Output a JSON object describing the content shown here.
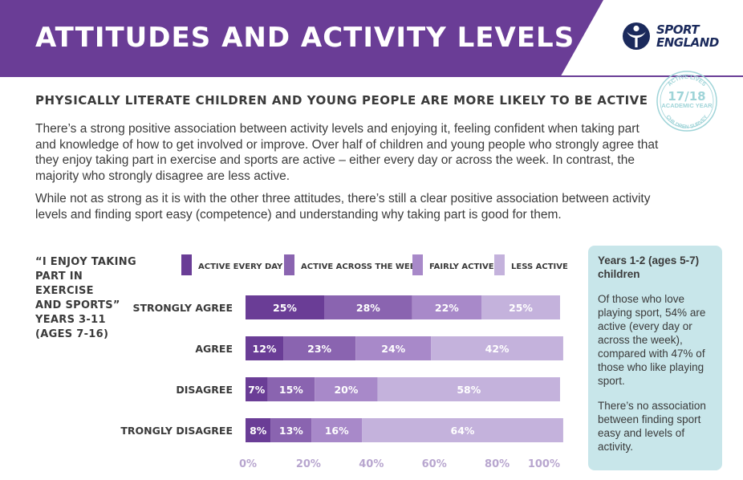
{
  "header": {
    "title": "ATTITUDES AND ACTIVITY LEVELS",
    "logo_line1": "SPORT",
    "logo_line2": "ENGLAND"
  },
  "stamp": {
    "line_top": "ACTIVE LIVES",
    "line_year": "17/18",
    "line_mid": "ACADEMIC YEAR",
    "line_bottom": "CHILDREN SURVEY"
  },
  "subtitle": "PHYSICALLY LITERATE CHILDREN AND YOUNG PEOPLE ARE MORE LIKELY TO BE ACTIVE",
  "paragraphs": [
    "There’s a strong positive association between activity levels and enjoying it, feeling confident when taking part and knowledge of how to get involved or improve. Over half of children and young people who strongly agree that they enjoy taking part in exercise and sports are active – either every day or across the week. In contrast, the majority who strongly disagree are less active.",
    "While not as strong as it is with the other three attitudes, there’s still a clear positive association between activity levels and finding sport easy (competence) and understanding why taking part is good for them."
  ],
  "quote": {
    "line1": "“I ENJOY TAKING",
    "line2": "PART IN EXERCISE",
    "line3": "AND SPORTS”",
    "line4": "YEARS 3-11",
    "line5": "(AGES 7-16)"
  },
  "chart_data": {
    "type": "bar",
    "orientation": "horizontal",
    "stacked": true,
    "title": "",
    "xlabel": "",
    "ylabel": "",
    "xlim": [
      0,
      100
    ],
    "x_ticks": [
      "0%",
      "20%",
      "40%",
      "60%",
      "80%",
      "100%"
    ],
    "legend_position": "top",
    "categories": [
      "STRONGLY AGREE",
      "AGREE",
      "DISAGREE",
      "STRONGLY DISAGREE"
    ],
    "series": [
      {
        "name": "ACTIVE EVERY DAY",
        "color": "#6a3d96",
        "values": [
          25,
          12,
          7,
          8
        ]
      },
      {
        "name": "ACTIVE ACROSS THE WEEK",
        "color": "#8a64b0",
        "values": [
          28,
          23,
          15,
          13
        ]
      },
      {
        "name": "FAIRLY ACTIVE",
        "color": "#a889c9",
        "values": [
          22,
          24,
          20,
          16
        ]
      },
      {
        "name": "LESS ACTIVE",
        "color": "#c4b2dc",
        "values": [
          25,
          42,
          58,
          64
        ]
      }
    ],
    "data_labels": [
      [
        "25%",
        "28%",
        "22%",
        "25%"
      ],
      [
        "12%",
        "23%",
        "24%",
        "42%"
      ],
      [
        "7%",
        "15%",
        "20%",
        "58%"
      ],
      [
        "8%",
        "13%",
        "16%",
        "64%"
      ]
    ]
  },
  "side_box": {
    "heading": "Years 1-2 (ages 5-7) children",
    "p1": "Of those who love playing sport, 54% are active (every day or across the week), compared with 47% of those who like playing sport.",
    "p2": "There’s no association between finding sport easy and levels of activity."
  },
  "colors": {
    "brand_purple": "#6a3d96",
    "side_box_bg": "#c8e6ea",
    "logo_navy": "#1b2a5c",
    "stamp_teal": "#9fd4d8"
  }
}
